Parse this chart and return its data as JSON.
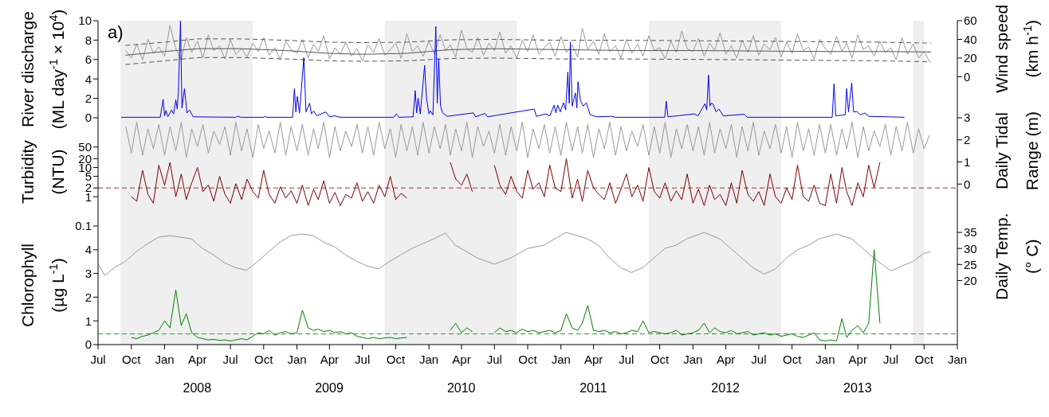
{
  "chart_data": [
    {
      "type": "line",
      "ylabel": "River discharge\n(ML day$^{-1}$ × 10$^{4}$)",
      "y2label": "Wind speed\n(km h$^{-1}$)",
      "annotations": [
        "a)"
      ],
      "xlim": [
        "2007-07-01",
        "2014-01-01"
      ],
      "ylim": [
        0,
        10
      ],
      "yticks": [
        0,
        2,
        4,
        6,
        8,
        10
      ],
      "y2lim": [
        -44,
        60
      ],
      "y2ticks": [
        0,
        20,
        40,
        60
      ],
      "tick_labels": "y",
      "marker": "none",
      "bands": [
        {
          "axis": "x",
          "from": "2007-09-01",
          "to": "2008-09-01",
          "color": "#efefef"
        },
        {
          "axis": "x",
          "from": "2009-09-01",
          "to": "2010-09-01",
          "color": "#efefef"
        },
        {
          "axis": "x",
          "from": "2011-09-01",
          "to": "2012-09-01",
          "color": "#efefef"
        },
        {
          "axis": "x",
          "from": "2013-09-01",
          "to": "2013-10-01",
          "color": "#efefef"
        }
      ],
      "x": [
        "2007-09-16",
        "2007-10-01",
        "2007-10-16",
        "2007-11-01",
        "2007-11-16",
        "2007-12-01",
        "2007-12-16",
        "2008-01-01",
        "2008-01-16",
        "2008-02-01",
        "2008-02-16",
        "2008-03-01",
        "2008-03-16",
        "2008-04-01",
        "2008-04-16",
        "2008-05-01",
        "2008-05-16",
        "2008-06-01",
        "2008-06-16",
        "2008-07-01",
        "2008-07-16",
        "2008-08-01",
        "2008-08-16",
        "2008-09-01",
        "2008-09-16",
        "2008-10-01",
        "2008-10-16",
        "2008-11-01",
        "2008-11-16",
        "2008-12-01",
        "2008-12-16",
        "2009-01-01",
        "2009-01-16",
        "2009-02-01",
        "2009-02-16",
        "2009-03-01",
        "2009-03-16",
        "2009-04-01",
        "2009-04-16",
        "2009-05-01",
        "2009-05-16",
        "2009-06-01",
        "2009-06-16",
        "2009-07-01",
        "2009-07-16",
        "2009-08-01",
        "2009-08-16",
        "2009-09-01",
        "2009-09-16",
        "2009-10-01",
        "2009-10-16",
        "2009-11-01",
        "2009-11-16",
        "2009-12-01",
        "2009-12-16",
        "2010-01-01",
        "2010-01-16",
        "2010-02-01",
        "2010-02-16",
        "2010-03-01",
        "2010-03-16",
        "2010-04-01",
        "2010-04-16",
        "2010-05-01",
        "2010-05-16",
        "2010-06-01",
        "2010-06-16",
        "2010-07-01",
        "2010-07-16",
        "2010-08-01",
        "2010-08-16",
        "2010-09-01",
        "2010-09-16",
        "2010-10-01",
        "2010-10-16",
        "2010-11-01",
        "2010-11-16",
        "2010-12-01",
        "2010-12-16",
        "2011-01-01",
        "2011-01-16",
        "2011-02-01",
        "2011-02-16",
        "2011-03-01",
        "2011-03-16",
        "2011-04-01",
        "2011-04-16",
        "2011-05-01",
        "2011-05-16",
        "2011-06-01",
        "2011-06-16",
        "2011-07-01",
        "2011-07-16",
        "2011-08-01",
        "2011-08-16",
        "2011-09-01",
        "2011-09-16",
        "2011-10-01",
        "2011-10-16",
        "2011-11-01",
        "2011-11-16",
        "2011-12-01",
        "2011-12-16",
        "2012-01-01",
        "2012-01-16",
        "2012-02-01",
        "2012-02-16",
        "2012-03-01",
        "2012-03-16",
        "2012-04-01",
        "2012-04-16",
        "2012-05-01",
        "2012-05-16",
        "2012-06-01",
        "2012-06-16",
        "2012-07-01",
        "2012-07-16",
        "2012-08-01",
        "2012-08-16",
        "2012-09-01",
        "2012-09-16",
        "2012-10-01",
        "2012-10-16",
        "2012-11-01",
        "2012-11-16",
        "2012-12-01",
        "2012-12-16",
        "2013-01-01",
        "2013-01-16",
        "2013-02-01",
        "2013-02-16",
        "2013-03-01",
        "2013-03-16",
        "2013-04-01",
        "2013-04-16",
        "2013-05-01",
        "2013-05-16",
        "2013-06-01",
        "2013-06-16",
        "2013-07-01",
        "2013-07-16",
        "2013-08-01",
        "2013-08-16",
        "2013-09-01",
        "2013-09-16",
        "2013-10-01",
        "2013-10-16"
      ],
      "series": [
        {
          "color": "#999999",
          "axis": "y2",
          "values": [
            28,
            20,
            35,
            18,
            40,
            25,
            32,
            22,
            55,
            30,
            18,
            42,
            26,
            38,
            20,
            45,
            28,
            33,
            19,
            40,
            24,
            30,
            21,
            36,
            27,
            42,
            23,
            31,
            18,
            38,
            29,
            25,
            40,
            20,
            35,
            27,
            44,
            19,
            31,
            24,
            37,
            22,
            30,
            17,
            34,
            26,
            41,
            23,
            29,
            36,
            20,
            46,
            27,
            33,
            22,
            38,
            24,
            45,
            28,
            34,
            21,
            50,
            30,
            26,
            42,
            23,
            36,
            28,
            48,
            25,
            33,
            20,
            39,
            27,
            45,
            24,
            31,
            37,
            22,
            43,
            26,
            34,
            21,
            52,
            29,
            38,
            24,
            46,
            27,
            33,
            20,
            40,
            25,
            35,
            22,
            44,
            28,
            31,
            19,
            38,
            26,
            49,
            30,
            27,
            41,
            22,
            36,
            28,
            47,
            24,
            33,
            20,
            39,
            26,
            44,
            23,
            35,
            29,
            42,
            21,
            37,
            25,
            46,
            28,
            32,
            19,
            40,
            30,
            24,
            43,
            27,
            36,
            20,
            45,
            29,
            33,
            22,
            38,
            26,
            31,
            18,
            42,
            24,
            35,
            20,
            27,
            16
          ]
        },
        {
          "color": "#555555",
          "axis": "y2",
          "x": [
            "2007-09-15",
            "2008-01-01",
            "2008-04-01",
            "2008-08-01",
            "2008-12-01",
            "2009-04-01",
            "2009-07-01",
            "2009-11-01",
            "2010-03-01",
            "2010-07-01",
            "2011-01-01",
            "2011-07-01",
            "2012-01-01",
            "2012-07-01",
            "2013-01-01",
            "2013-06-01",
            "2013-10-20"
          ],
          "values": [
            23,
            27,
            30,
            30,
            28,
            25,
            24,
            25,
            29,
            30,
            29,
            28,
            28,
            27.5,
            27,
            27,
            26.5
          ]
        },
        {
          "color": "#555555",
          "axis": "y2",
          "line_style": "dashed",
          "x": [
            "2007-09-15",
            "2008-01-01",
            "2008-04-01",
            "2008-08-01",
            "2008-12-01",
            "2009-04-01",
            "2009-07-01",
            "2009-11-01",
            "2010-03-01",
            "2010-07-01",
            "2011-01-01",
            "2011-07-01",
            "2012-01-01",
            "2012-07-01",
            "2013-01-01",
            "2013-06-01",
            "2013-10-20"
          ],
          "values": [
            33.5,
            37,
            40.5,
            40.5,
            39,
            37,
            36.5,
            37,
            39.5,
            40,
            39,
            39,
            38.5,
            38,
            37.5,
            37,
            36
          ]
        },
        {
          "color": "#555555",
          "axis": "y2",
          "line_style": "dashed",
          "x": [
            "2007-09-15",
            "2008-01-01",
            "2008-04-01",
            "2008-08-01",
            "2008-12-01",
            "2009-04-01",
            "2009-07-01",
            "2009-11-01",
            "2010-03-01",
            "2010-07-01",
            "2011-01-01",
            "2011-07-01",
            "2012-01-01",
            "2012-07-01",
            "2013-01-01",
            "2013-06-01",
            "2013-10-20"
          ],
          "values": [
            13,
            17,
            20.5,
            20.5,
            19,
            17,
            16.5,
            17,
            19.5,
            20,
            19,
            19,
            18.5,
            18,
            17.5,
            17,
            16
          ]
        },
        {
          "color": "#0000ee",
          "x": [
            "2007-09-03",
            "2007-12-20",
            "2007-12-28",
            "2008-01-01",
            "2008-01-05",
            "2008-01-10",
            "2008-01-20",
            "2008-01-26",
            "2008-02-01",
            "2008-02-05",
            "2008-02-08",
            "2008-02-14",
            "2008-02-18",
            "2008-02-25",
            "2008-03-03",
            "2008-03-10",
            "2008-03-20",
            "2008-07-15",
            "2008-07-22",
            "2008-07-30",
            "2008-10-01",
            "2008-10-05",
            "2008-10-10",
            "2008-12-20",
            "2008-12-25",
            "2008-12-29",
            "2009-01-02",
            "2009-01-08",
            "2009-01-20",
            "2009-01-26",
            "2009-02-05",
            "2009-02-10",
            "2009-02-16",
            "2009-02-25",
            "2009-03-22",
            "2009-04-01",
            "2009-04-15",
            "2009-05-01",
            "2009-09-25",
            "2009-10-03",
            "2009-10-10",
            "2009-11-18",
            "2009-11-24",
            "2009-11-28",
            "2009-12-02",
            "2009-12-08",
            "2009-12-20",
            "2009-12-25",
            "2010-01-01",
            "2010-01-05",
            "2010-01-12",
            "2010-01-20",
            "2010-01-24",
            "2010-01-28",
            "2010-02-02",
            "2010-02-08",
            "2010-02-20",
            "2010-05-04",
            "2010-05-10",
            "2010-06-05",
            "2010-06-12",
            "2010-10-19",
            "2010-10-25",
            "2010-11-20",
            "2010-12-01",
            "2010-12-13",
            "2010-12-18",
            "2010-12-23",
            "2010-12-30",
            "2011-01-08",
            "2011-01-14",
            "2011-01-20",
            "2011-01-24",
            "2011-01-27",
            "2011-02-01",
            "2011-02-10",
            "2011-02-14",
            "2011-02-17",
            "2011-02-24",
            "2011-03-04",
            "2011-03-12",
            "2011-03-23",
            "2011-04-10",
            "2011-05-20",
            "2011-06-01",
            "2011-10-15",
            "2011-10-19",
            "2011-10-24",
            "2012-01-05",
            "2012-01-15",
            "2012-02-03",
            "2012-02-08",
            "2012-02-13",
            "2012-02-17",
            "2012-02-20",
            "2012-02-25",
            "2012-03-05",
            "2012-03-13",
            "2012-03-25",
            "2012-05-22",
            "2012-05-30",
            "2013-01-20",
            "2013-01-25",
            "2013-01-30",
            "2013-02-25",
            "2013-03-01",
            "2013-03-06",
            "2013-03-15",
            "2013-03-20",
            "2013-03-29",
            "2013-04-08",
            "2013-04-20",
            "2013-05-01",
            "2013-08-08"
          ],
          "values": [
            0.05,
            0.05,
            1.9,
            0.2,
            0.75,
            0.1,
            0.8,
            0.4,
            1.85,
            0.9,
            2.6,
            10,
            1.0,
            3.0,
            0.5,
            0.8,
            0.1,
            0.05,
            0.15,
            0.05,
            0.05,
            0.15,
            0.05,
            0.05,
            3.0,
            0.6,
            2.2,
            0.5,
            6.2,
            0.6,
            1.5,
            0.4,
            0.7,
            0.2,
            0.6,
            0.1,
            0.2,
            0.05,
            0.05,
            0.4,
            0.05,
            0.1,
            2.8,
            0.5,
            2.05,
            0.4,
            5.4,
            2.1,
            0.4,
            0.7,
            0.3,
            9.4,
            1.5,
            6.1,
            1.2,
            0.5,
            0.15,
            0.5,
            0.1,
            0.45,
            0.1,
            0.9,
            0.15,
            0.4,
            0.2,
            1.3,
            0.5,
            1.3,
            0.6,
            1.55,
            0.8,
            4.7,
            1.5,
            7.8,
            1.2,
            2.55,
            1.0,
            3.7,
            1.75,
            1.2,
            1.55,
            0.3,
            0.1,
            0.15,
            0.05,
            0.05,
            1.7,
            0.1,
            0.4,
            0.2,
            1.45,
            0.8,
            4.4,
            1.2,
            1.5,
            1.45,
            0.6,
            0.9,
            0.2,
            0.36,
            0.05,
            0.05,
            3.5,
            0.2,
            0.3,
            3.0,
            0.6,
            3.6,
            0.6,
            0.65,
            0.3,
            0.5,
            0.15,
            0.05
          ]
        }
      ]
    },
    {
      "type": "line",
      "ylabel": "Turbidity\n(NTU)",
      "y2label": "Daily Tidal\nRange (m)",
      "xlim": [
        "2007-07-01",
        "2014-01-01"
      ],
      "ylim": [
        0.1,
        500
      ],
      "yticks": [
        0.1,
        1,
        2,
        5,
        10,
        20,
        50
      ],
      "log": true,
      "y2lim": [
        -1.9,
        3
      ],
      "y2ticks": [
        0,
        1,
        2,
        3
      ],
      "tick_labels": "y",
      "marker": "none",
      "ref_lines": [
        {
          "axis": "y",
          "value": 2,
          "color": "#a0302f",
          "line_style": "dashed"
        }
      ],
      "bands": [
        {
          "axis": "x",
          "from": "2007-09-01",
          "to": "2008-09-01",
          "color": "#efefef"
        },
        {
          "axis": "x",
          "from": "2009-09-01",
          "to": "2010-09-01",
          "color": "#efefef"
        },
        {
          "axis": "x",
          "from": "2011-09-01",
          "to": "2012-09-01",
          "color": "#efefef"
        },
        {
          "axis": "x",
          "from": "2013-09-01",
          "to": "2013-10-01",
          "color": "#efefef"
        }
      ],
      "x": [
        "2007-09-16",
        "2007-10-01",
        "2007-10-16",
        "2007-11-01",
        "2007-11-16",
        "2007-12-01",
        "2007-12-16",
        "2008-01-01",
        "2008-01-16",
        "2008-02-01",
        "2008-02-16",
        "2008-03-01",
        "2008-03-16",
        "2008-04-01",
        "2008-04-16",
        "2008-05-01",
        "2008-05-16",
        "2008-06-01",
        "2008-06-16",
        "2008-07-01",
        "2008-07-16",
        "2008-08-01",
        "2008-08-16",
        "2008-09-01",
        "2008-09-16",
        "2008-10-01",
        "2008-10-16",
        "2008-11-01",
        "2008-11-16",
        "2008-12-01",
        "2008-12-16",
        "2009-01-01",
        "2009-01-16",
        "2009-02-01",
        "2009-02-16",
        "2009-03-01",
        "2009-03-16",
        "2009-04-01",
        "2009-04-16",
        "2009-05-01",
        "2009-05-16",
        "2009-06-01",
        "2009-06-16",
        "2009-07-01",
        "2009-07-16",
        "2009-08-01",
        "2009-08-16",
        "2009-09-01",
        "2009-09-16",
        "2009-10-01",
        "2009-10-16",
        "2009-11-01",
        "2009-11-16",
        "2009-12-01",
        "2009-12-16",
        "2010-01-01",
        "2010-01-16",
        "2010-02-01",
        "2010-02-16",
        "2010-03-01",
        "2010-03-16",
        "2010-04-01",
        "2010-04-16",
        "2010-05-01",
        "2010-05-16",
        "2010-06-01",
        "2010-06-16",
        "2010-07-01",
        "2010-07-16",
        "2010-08-01",
        "2010-08-16",
        "2010-09-01",
        "2010-09-16",
        "2010-10-01",
        "2010-10-16",
        "2010-11-01",
        "2010-11-16",
        "2010-12-01",
        "2010-12-16",
        "2011-01-01",
        "2011-01-16",
        "2011-02-01",
        "2011-02-16",
        "2011-03-01",
        "2011-03-16",
        "2011-04-01",
        "2011-04-16",
        "2011-05-01",
        "2011-05-16",
        "2011-06-01",
        "2011-06-16",
        "2011-07-01",
        "2011-07-16",
        "2011-08-01",
        "2011-08-16",
        "2011-09-01",
        "2011-09-16",
        "2011-10-01",
        "2011-10-16",
        "2011-11-01",
        "2011-11-16",
        "2011-12-01",
        "2011-12-16",
        "2012-01-01",
        "2012-01-16",
        "2012-02-01",
        "2012-02-16",
        "2012-03-01",
        "2012-03-16",
        "2012-04-01",
        "2012-04-16",
        "2012-05-01",
        "2012-05-16",
        "2012-06-01",
        "2012-06-16",
        "2012-07-01",
        "2012-07-16",
        "2012-08-01",
        "2012-08-16",
        "2012-09-01",
        "2012-09-16",
        "2012-10-01",
        "2012-10-16",
        "2012-11-01",
        "2012-11-16",
        "2012-12-01",
        "2012-12-16",
        "2013-01-01",
        "2013-01-16",
        "2013-02-01",
        "2013-02-16",
        "2013-03-01",
        "2013-03-16",
        "2013-04-01",
        "2013-04-16",
        "2013-05-01",
        "2013-05-16",
        "2013-06-01",
        "2013-06-16",
        "2013-07-01",
        "2013-07-16",
        "2013-08-01",
        "2013-08-16",
        "2013-09-01",
        "2013-09-16",
        "2013-10-01",
        "2013-10-16"
      ],
      "series": [
        {
          "color": "#999999",
          "axis": "y2",
          "values": [
            2.6,
            1.4,
            2.8,
            1.3,
            2.5,
            1.6,
            2.7,
            1.3,
            2.6,
            1.5,
            2.8,
            1.2,
            2.5,
            1.7,
            2.7,
            1.4,
            2.4,
            1.8,
            2.6,
            1.3,
            2.8,
            1.5,
            2.5,
            1.2,
            2.7,
            1.6,
            2.4,
            1.4,
            2.8,
            1.3,
            2.6,
            1.5,
            2.7,
            1.3,
            2.5,
            1.6,
            2.8,
            1.2,
            2.6,
            1.5,
            2.4,
            1.7,
            2.7,
            1.4,
            2.6,
            1.3,
            2.8,
            1.6,
            2.5,
            1.2,
            2.7,
            1.5,
            2.6,
            1.3,
            2.8,
            1.4,
            2.6,
            1.6,
            2.7,
            1.3,
            2.5,
            1.5,
            2.8,
            1.2,
            2.6,
            1.7,
            2.4,
            1.4,
            2.7,
            1.3,
            2.6,
            1.5,
            2.8,
            1.2,
            2.5,
            1.6,
            2.7,
            1.4,
            2.6,
            1.3,
            2.8,
            1.5,
            2.6,
            1.4,
            2.7,
            1.2,
            2.5,
            1.6,
            2.8,
            1.3,
            2.6,
            1.5,
            2.4,
            1.7,
            2.7,
            1.3,
            2.6,
            1.4,
            2.8,
            1.2,
            2.5,
            1.6,
            2.7,
            1.5,
            2.6,
            1.3,
            2.8,
            1.4,
            2.5,
            1.6,
            2.7,
            1.2,
            2.6,
            1.5,
            2.8,
            1.3,
            2.4,
            1.6,
            2.7,
            1.4,
            2.6,
            1.2,
            2.8,
            1.5,
            2.5,
            1.3,
            2.7,
            1.4,
            2.7,
            1.3,
            2.5,
            1.6,
            2.8,
            1.2,
            2.6,
            1.5,
            2.4,
            1.7,
            2.7,
            1.3,
            2.6,
            1.5,
            2.8,
            1.4,
            2.5,
            1.6,
            2.2
          ]
        },
        {
          "color": "#7a0000",
          "values": [
            null,
            1.0,
            0.7,
            8,
            1.2,
            0.6,
            12,
            2.5,
            15,
            1.0,
            6,
            0.8,
            3,
            10,
            1.5,
            2.5,
            0.7,
            5,
            1.2,
            0.6,
            2.8,
            0.8,
            4,
            1.5,
            0.9,
            8,
            1.2,
            0.6,
            2.2,
            0.9,
            1.6,
            0.6,
            2.5,
            0.5,
            1.8,
            0.8,
            3.5,
            0.6,
            1.4,
            0.5,
            1.2,
            0.9,
            3,
            0.7,
            1.5,
            0.6,
            2.5,
            1.0,
            5,
            0.8,
            1.3,
            0.9,
            null,
            null,
            null,
            null,
            null,
            null,
            null,
            15,
            4,
            2.5,
            6,
            1.5,
            null,
            null,
            null,
            12,
            2.5,
            1.2,
            5,
            1.5,
            0.9,
            8,
            1.8,
            3,
            1.0,
            12,
            2.0,
            1.5,
            20,
            0.9,
            4,
            0.7,
            8,
            2,
            1.2,
            0.8,
            3,
            0.6,
            1.8,
            6,
            1.0,
            2.5,
            0.7,
            10,
            1.5,
            0.9,
            3,
            0.7,
            1.6,
            0.8,
            6,
            0.6,
            1.8,
            0.5,
            2.5,
            0.8,
            1.2,
            0.5,
            3,
            0.6,
            8,
            1.2,
            0.7,
            1.5,
            0.5,
            6,
            1.0,
            0.6,
            2,
            0.8,
            12,
            1.0,
            0.7,
            2.5,
            0.6,
            0.5,
            6,
            0.6,
            10,
            1.5,
            0.5,
            3,
            1.0,
            12,
            2,
            15,
            null,
            null,
            null,
            null,
            null,
            null,
            null,
            null,
            null
          ]
        }
      ]
    },
    {
      "type": "line",
      "ylabel": "Chlorophyll\n(µg L$^{-1}$)",
      "y2label": "Daily Temp.\n(° C)",
      "xlim": [
        "2007-07-01",
        "2014-01-01"
      ],
      "ylim": [
        0,
        5
      ],
      "yticks": [
        0,
        1,
        2,
        3,
        4
      ],
      "y2lim": [
        0,
        37
      ],
      "y2ticks": [
        20,
        25,
        30,
        35
      ],
      "marker": "none",
      "xticks": [
        {
          "value": "2007-07",
          "label": "Jul"
        },
        {
          "value": "2007-10",
          "label": "Oct"
        },
        {
          "value": "2008-01",
          "label": "Jan"
        },
        {
          "value": "2008-04",
          "label": "Apr"
        },
        {
          "value": "2008-07",
          "label": "Jul"
        },
        {
          "value": "2008-10",
          "label": "Oct"
        },
        {
          "value": "2009-01",
          "label": "Jan"
        },
        {
          "value": "2009-04",
          "label": "Apr"
        },
        {
          "value": "2009-07",
          "label": "Jul"
        },
        {
          "value": "2009-10",
          "label": "Oct"
        },
        {
          "value": "2010-01",
          "label": "Jan"
        },
        {
          "value": "2010-04",
          "label": "Apr"
        },
        {
          "value": "2010-07",
          "label": "Jul"
        },
        {
          "value": "2010-10",
          "label": "Oct"
        },
        {
          "value": "2011-01",
          "label": "Jan"
        },
        {
          "value": "2011-04",
          "label": "Apr"
        },
        {
          "value": "2011-07",
          "label": "Jul"
        },
        {
          "value": "2011-10",
          "label": "Oct"
        },
        {
          "value": "2012-01",
          "label": "Jan"
        },
        {
          "value": "2012-04",
          "label": "Apr"
        },
        {
          "value": "2012-07",
          "label": "Jul"
        },
        {
          "value": "2012-10",
          "label": "Oct"
        },
        {
          "value": "2013-01",
          "label": "Jan"
        },
        {
          "value": "2013-04",
          "label": "Apr"
        },
        {
          "value": "2013-07",
          "label": "Jul"
        },
        {
          "value": "2013-10",
          "label": "Oct"
        },
        {
          "value": "2014-01",
          "label": "Jan"
        }
      ],
      "annotations": [
        "2008",
        "2009",
        "2010",
        "2011",
        "2012",
        "2013"
      ],
      "ref_lines": [
        {
          "axis": "y",
          "value": 0.45,
          "color": "#2a9a2a",
          "line_style": "dashed"
        }
      ],
      "bands": [
        {
          "axis": "x",
          "from": "2007-09-01",
          "to": "2008-09-01",
          "color": "#efefef"
        },
        {
          "axis": "x",
          "from": "2009-09-01",
          "to": "2010-09-01",
          "color": "#efefef"
        },
        {
          "axis": "x",
          "from": "2011-09-01",
          "to": "2012-09-01",
          "color": "#efefef"
        },
        {
          "axis": "x",
          "from": "2013-09-01",
          "to": "2013-10-01",
          "color": "#efefef"
        }
      ],
      "x": [
        "2007-10-01",
        "2007-10-16",
        "2007-11-01",
        "2007-11-16",
        "2007-12-01",
        "2007-12-16",
        "2008-01-01",
        "2008-01-16",
        "2008-02-01",
        "2008-02-16",
        "2008-03-01",
        "2008-03-16",
        "2008-04-01",
        "2008-04-16",
        "2008-05-01",
        "2008-05-16",
        "2008-06-01",
        "2008-06-16",
        "2008-07-01",
        "2008-07-16",
        "2008-08-01",
        "2008-08-16",
        "2008-09-01",
        "2008-09-16",
        "2008-10-01",
        "2008-10-16",
        "2008-11-01",
        "2008-11-16",
        "2008-12-01",
        "2008-12-16",
        "2009-01-01",
        "2009-01-16",
        "2009-02-01",
        "2009-02-16",
        "2009-03-01",
        "2009-03-16",
        "2009-04-01",
        "2009-04-16",
        "2009-05-01",
        "2009-05-16",
        "2009-06-01",
        "2009-06-16",
        "2009-07-01",
        "2009-07-16",
        "2009-08-01",
        "2009-08-16",
        "2009-09-01",
        "2009-09-16",
        "2009-10-01",
        "2009-10-16",
        "2009-11-01",
        "2009-11-16",
        "2009-12-01",
        "2009-12-16",
        "2010-01-01",
        "2010-01-16",
        "2010-02-01",
        "2010-02-16",
        "2010-03-01",
        "2010-03-16",
        "2010-04-01",
        "2010-04-16",
        "2010-05-01",
        "2010-05-16",
        "2010-06-01",
        "2010-06-16",
        "2010-07-01",
        "2010-07-16",
        "2010-08-01",
        "2010-08-16",
        "2010-09-01",
        "2010-09-16",
        "2010-10-01",
        "2010-10-16",
        "2010-11-01",
        "2010-11-16",
        "2010-12-01",
        "2010-12-16",
        "2011-01-01",
        "2011-01-16",
        "2011-02-01",
        "2011-02-16",
        "2011-03-01",
        "2011-03-16",
        "2011-04-01",
        "2011-04-16",
        "2011-05-01",
        "2011-05-16",
        "2011-06-01",
        "2011-06-16",
        "2011-07-01",
        "2011-07-16",
        "2011-08-01",
        "2011-08-16",
        "2011-09-01",
        "2011-09-16",
        "2011-10-01",
        "2011-10-16",
        "2011-11-01",
        "2011-11-16",
        "2011-12-01",
        "2011-12-16",
        "2012-01-01",
        "2012-01-16",
        "2012-02-01",
        "2012-02-16",
        "2012-03-01",
        "2012-03-16",
        "2012-04-01",
        "2012-04-16",
        "2012-05-01",
        "2012-05-16",
        "2012-06-01",
        "2012-06-16",
        "2012-07-01",
        "2012-07-16",
        "2012-08-01",
        "2012-08-16",
        "2012-09-01",
        "2012-09-16",
        "2012-10-01",
        "2012-10-16",
        "2012-11-01",
        "2012-11-16",
        "2012-12-01",
        "2012-12-16",
        "2013-01-01",
        "2013-01-16",
        "2013-02-01",
        "2013-02-16",
        "2013-03-01",
        "2013-03-16",
        "2013-04-01",
        "2013-04-16",
        "2013-05-01",
        "2013-05-16",
        "2013-06-01"
      ],
      "series": [
        {
          "color": "#999999",
          "axis": "y2",
          "x": [
            "2007-07-01",
            "2007-07-20",
            "2007-08-15",
            "2007-09-15",
            "2007-10-15",
            "2007-11-15",
            "2007-12-15",
            "2008-01-15",
            "2008-02-15",
            "2008-03-15",
            "2008-04-15",
            "2008-05-15",
            "2008-06-15",
            "2008-07-15",
            "2008-08-15",
            "2008-09-15",
            "2008-10-15",
            "2008-11-15",
            "2008-12-15",
            "2009-01-15",
            "2009-02-15",
            "2009-03-15",
            "2009-04-15",
            "2009-05-15",
            "2009-06-15",
            "2009-07-15",
            "2009-08-15",
            "2009-09-15",
            "2009-10-15",
            "2009-11-15",
            "2009-12-15",
            "2010-01-15",
            "2010-02-15",
            "2010-03-15",
            "2010-04-15",
            "2010-05-15",
            "2010-07-01",
            "2010-08-15",
            "2010-10-01",
            "2010-11-15",
            "2010-12-15",
            "2011-01-15",
            "2011-02-15",
            "2011-03-15",
            "2011-04-15",
            "2011-05-15",
            "2011-06-15",
            "2011-07-15",
            "2011-08-15",
            "2011-09-15",
            "2011-10-15",
            "2011-11-15",
            "2011-12-15",
            "2012-02-01",
            "2012-03-15",
            "2012-04-15",
            "2012-05-15",
            "2012-06-15",
            "2012-07-15",
            "2012-08-15",
            "2012-09-15",
            "2012-10-15",
            "2012-11-15",
            "2012-12-15",
            "2013-02-01",
            "2013-03-15",
            "2013-04-15",
            "2013-05-15",
            "2013-07-01",
            "2013-08-01",
            "2013-09-01",
            "2013-10-01",
            "2013-10-20"
          ],
          "values": [
            25.2,
            21.5,
            24,
            26,
            29,
            31.5,
            33.5,
            34,
            33.5,
            33,
            30,
            28,
            25.5,
            24,
            23.2,
            26,
            29,
            32,
            34,
            34.5,
            34,
            32,
            30.5,
            28,
            26,
            24.5,
            23.6,
            26,
            28,
            30,
            31.5,
            33,
            34.8,
            31,
            29,
            27,
            25.1,
            27,
            30,
            31,
            33,
            35,
            34,
            33,
            31,
            27,
            24,
            22.5,
            24,
            27,
            30,
            31,
            33,
            35,
            33,
            30,
            27,
            24,
            22,
            23.5,
            27,
            29.5,
            31,
            33,
            34.5,
            33,
            30,
            27,
            23,
            24.5,
            26,
            28.5,
            29
          ]
        },
        {
          "color": "#008000",
          "values": [
            0.3,
            0.25,
            0.35,
            0.4,
            0.5,
            0.6,
            1.0,
            0.7,
            2.3,
            0.8,
            1.3,
            0.5,
            0.3,
            0.25,
            0.2,
            0.22,
            0.18,
            0.2,
            0.15,
            0.2,
            0.25,
            0.2,
            0.35,
            0.5,
            0.45,
            0.6,
            0.4,
            0.5,
            0.55,
            0.45,
            0.5,
            1.45,
            0.7,
            0.6,
            0.65,
            0.55,
            0.6,
            0.5,
            0.55,
            0.45,
            0.5,
            0.35,
            0.3,
            0.25,
            0.3,
            0.25,
            0.28,
            0.3,
            0.25,
            0.28,
            0.3,
            null,
            null,
            null,
            null,
            null,
            null,
            null,
            0.6,
            0.9,
            0.5,
            0.7,
            0.55,
            null,
            null,
            null,
            0.5,
            0.7,
            0.55,
            0.6,
            0.5,
            0.65,
            0.55,
            0.6,
            0.5,
            0.55,
            0.6,
            0.5,
            0.6,
            1.3,
            0.7,
            0.6,
            0.9,
            1.65,
            0.6,
            0.55,
            0.6,
            0.5,
            0.55,
            0.45,
            0.5,
            0.6,
            0.55,
            1.0,
            0.5,
            0.55,
            0.5,
            0.45,
            0.5,
            0.6,
            0.4,
            0.45,
            0.5,
            0.6,
            0.9,
            0.5,
            0.7,
            0.55,
            0.5,
            0.6,
            0.45,
            0.5,
            0.55,
            0.4,
            0.45,
            0.5,
            0.4,
            0.45,
            0.35,
            0.4,
            0.45,
            0.35,
            0.3,
            0.4,
            0.5,
            0.2,
            0.15,
            0.2,
            0.15,
            1.1,
            0.3,
            0.6,
            0.8,
            0.5,
            0.9,
            4.0,
            0.9
          ]
        }
      ]
    }
  ]
}
